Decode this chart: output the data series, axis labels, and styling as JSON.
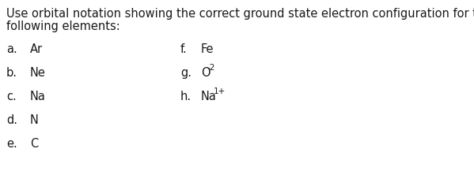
{
  "title_line1": "Use orbital notation showing the correct ground state electron configuration for the",
  "title_line2": "following elements:",
  "left_items": [
    {
      "label": "a.  Ar"
    },
    {
      "label": "b.  Ne"
    },
    {
      "label": "c.  Na"
    },
    {
      "label": "d.  N"
    },
    {
      "label": "e.  C"
    }
  ],
  "right_items": [
    {
      "prefix": "f.  Fe",
      "element": "",
      "superscript": ""
    },
    {
      "prefix": "g.  O",
      "element": "O",
      "superscript": "-2"
    },
    {
      "prefix": "h.  Na",
      "element": "Na",
      "superscript": "1+"
    }
  ],
  "background_color": "#ffffff",
  "text_color": "#1a1a1a",
  "font_size": 10.5
}
